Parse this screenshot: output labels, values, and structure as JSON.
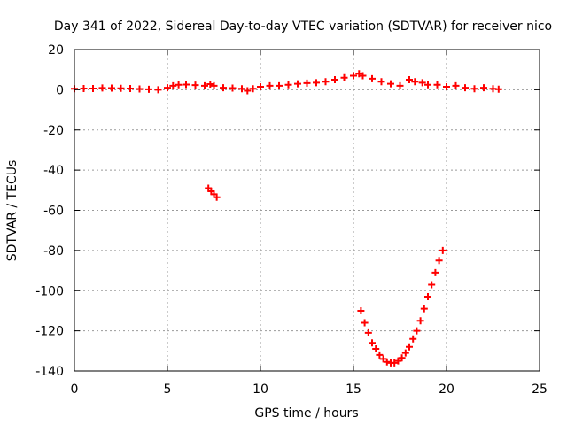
{
  "chart_data": {
    "type": "scatter",
    "title": "Day 341 of 2022, Sidereal Day-to-day VTEC variation (SDTVAR) for receiver nico",
    "xlabel": "GPS time / hours",
    "ylabel": "SDTVAR / TECUs",
    "xlim": [
      0,
      25
    ],
    "ylim": [
      -140,
      20
    ],
    "xticks": [
      0,
      5,
      10,
      15,
      20,
      25
    ],
    "yticks": [
      20,
      0,
      -20,
      -40,
      -60,
      -80,
      -100,
      -120,
      -140
    ],
    "grid": true,
    "marker": "+",
    "color": "#ff0000",
    "series": [
      {
        "name": "SDTVAR",
        "points": [
          [
            0.0,
            0.5
          ],
          [
            0.5,
            0.6
          ],
          [
            1.0,
            0.6
          ],
          [
            1.5,
            0.9
          ],
          [
            2.0,
            0.8
          ],
          [
            2.5,
            0.7
          ],
          [
            3.0,
            0.6
          ],
          [
            3.5,
            0.4
          ],
          [
            4.0,
            0.2
          ],
          [
            4.5,
            0.0
          ],
          [
            5.0,
            1.0
          ],
          [
            5.3,
            2.0
          ],
          [
            5.6,
            2.5
          ],
          [
            6.0,
            2.6
          ],
          [
            6.5,
            2.3
          ],
          [
            7.0,
            2.0
          ],
          [
            7.3,
            2.8
          ],
          [
            7.5,
            2.0
          ],
          [
            8.0,
            1.0
          ],
          [
            8.5,
            0.8
          ],
          [
            9.0,
            0.5
          ],
          [
            9.3,
            -0.5
          ],
          [
            9.6,
            0.5
          ],
          [
            10.0,
            1.5
          ],
          [
            10.5,
            2.0
          ],
          [
            11.0,
            2.0
          ],
          [
            11.5,
            2.5
          ],
          [
            12.0,
            3.0
          ],
          [
            12.5,
            3.3
          ],
          [
            13.0,
            3.5
          ],
          [
            13.5,
            4.0
          ],
          [
            14.0,
            5.0
          ],
          [
            14.5,
            6.0
          ],
          [
            15.0,
            7.0
          ],
          [
            15.3,
            8.0
          ],
          [
            15.5,
            7.0
          ],
          [
            16.0,
            5.5
          ],
          [
            16.5,
            4.0
          ],
          [
            17.0,
            3.0
          ],
          [
            17.5,
            2.0
          ],
          [
            18.0,
            5.0
          ],
          [
            18.3,
            4.0
          ],
          [
            18.7,
            3.5
          ],
          [
            19.0,
            2.5
          ],
          [
            19.5,
            2.5
          ],
          [
            20.0,
            1.5
          ],
          [
            20.5,
            2.0
          ],
          [
            21.0,
            1.0
          ],
          [
            21.5,
            0.5
          ],
          [
            22.0,
            1.0
          ],
          [
            22.5,
            0.5
          ],
          [
            22.8,
            0.3
          ],
          [
            7.2,
            -49
          ],
          [
            7.35,
            -50.5
          ],
          [
            7.5,
            -52
          ],
          [
            7.65,
            -53.5
          ],
          [
            15.4,
            -110
          ],
          [
            15.6,
            -116
          ],
          [
            15.8,
            -121
          ],
          [
            16.0,
            -126
          ],
          [
            16.2,
            -129
          ],
          [
            16.4,
            -132
          ],
          [
            16.6,
            -134
          ],
          [
            16.8,
            -135.5
          ],
          [
            17.0,
            -136
          ],
          [
            17.2,
            -136
          ],
          [
            17.4,
            -135
          ],
          [
            17.6,
            -133.5
          ],
          [
            17.8,
            -131
          ],
          [
            18.0,
            -128
          ],
          [
            18.2,
            -124
          ],
          [
            18.4,
            -120
          ],
          [
            18.6,
            -115
          ],
          [
            18.8,
            -109
          ],
          [
            19.0,
            -103
          ],
          [
            19.2,
            -97
          ],
          [
            19.4,
            -91
          ],
          [
            19.6,
            -85
          ],
          [
            19.8,
            -80
          ]
        ]
      }
    ]
  }
}
